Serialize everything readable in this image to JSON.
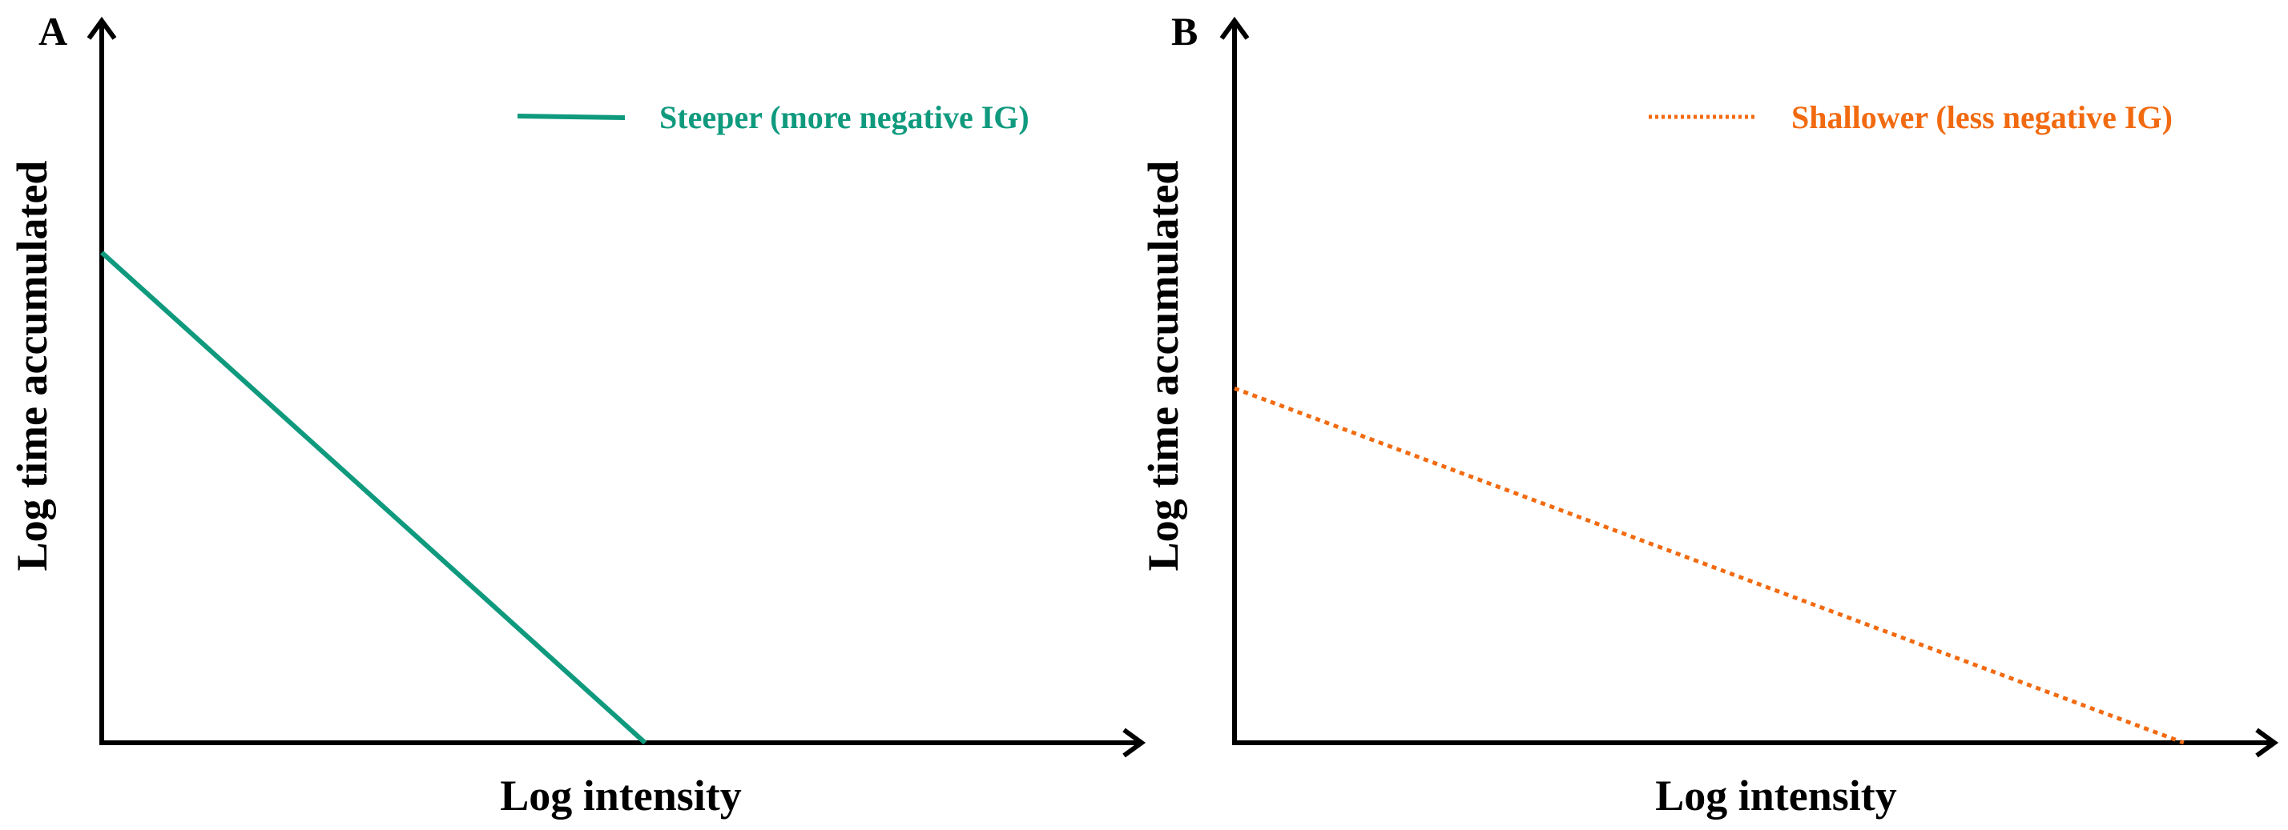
{
  "chart_data": [
    {
      "type": "line",
      "panel_label": "A",
      "xlabel": "Log intensity",
      "ylabel": "Log time accumulated",
      "xlim": [
        0,
        1
      ],
      "ylim": [
        0,
        1
      ],
      "grid": false,
      "ticks": "none",
      "legend_position": "top-right",
      "series": [
        {
          "name": "Steeper (more negative IG)",
          "color": "#0f9a7e",
          "line_style": "solid",
          "x": [
            0,
            0.56
          ],
          "y": [
            0.83,
            0
          ]
        }
      ]
    },
    {
      "type": "line",
      "panel_label": "B",
      "xlabel": "Log intensity",
      "ylabel": "Log time accumulated",
      "xlim": [
        0,
        1
      ],
      "ylim": [
        0,
        1
      ],
      "grid": false,
      "ticks": "none",
      "legend_position": "top-right",
      "series": [
        {
          "name": "Shallower (less negative IG)",
          "color": "#f26a10",
          "line_style": "dotted",
          "x": [
            0,
            0.93
          ],
          "y": [
            0.6,
            0
          ]
        }
      ]
    }
  ]
}
